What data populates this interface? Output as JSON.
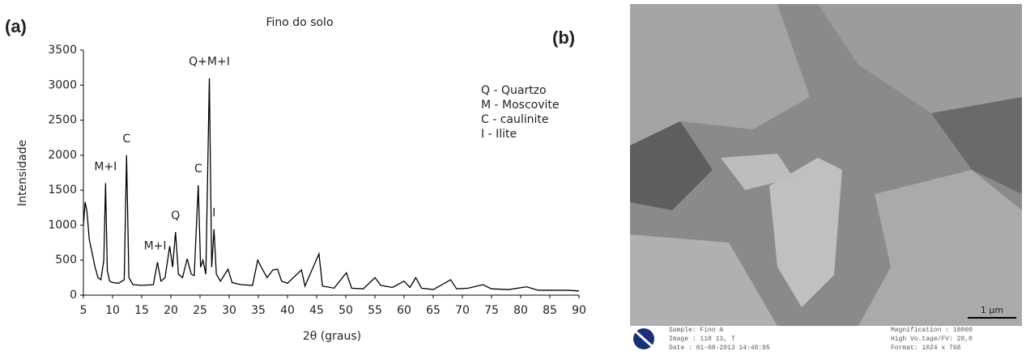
{
  "chart_data": {
    "type": "line",
    "title": "Fino do solo",
    "x_label": "2θ (graus)",
    "y_label": "Intensidade",
    "x": [
      5,
      5.3,
      5.6,
      6,
      6.5,
      7,
      7.5,
      8,
      8.5,
      8.8,
      9.1,
      9.5,
      10,
      11,
      12,
      12.4,
      12.8,
      13.5,
      15,
      17,
      17.7,
      18.3,
      19,
      19.8,
      20.3,
      20.8,
      21.3,
      22,
      22.8,
      23.5,
      24,
      24.7,
      25.1,
      25.5,
      26.0,
      26.6,
      27.0,
      27.4,
      27.8,
      28.5,
      29.8,
      30.5,
      32,
      34,
      34.9,
      35.5,
      36.5,
      37.5,
      38.3,
      39,
      40,
      42.4,
      43,
      45.4,
      46,
      48,
      50.1,
      51,
      53,
      55,
      56,
      58,
      60,
      61,
      62,
      63,
      65,
      68,
      69,
      71,
      73.5,
      75,
      78,
      81,
      83,
      86,
      88,
      90
    ],
    "series": [
      {
        "color": "#000000",
        "values": [
          1000,
          1330,
          1200,
          800,
          600,
          400,
          250,
          220,
          500,
          1600,
          350,
          200,
          180,
          170,
          220,
          2000,
          250,
          150,
          140,
          150,
          470,
          200,
          250,
          700,
          400,
          900,
          300,
          250,
          520,
          300,
          280,
          1570,
          400,
          500,
          300,
          3100,
          400,
          940,
          300,
          200,
          370,
          180,
          150,
          140,
          500,
          400,
          250,
          360,
          370,
          200,
          170,
          360,
          130,
          590,
          130,
          100,
          320,
          100,
          90,
          250,
          140,
          110,
          200,
          110,
          250,
          100,
          80,
          220,
          90,
          100,
          150,
          90,
          80,
          120,
          70,
          70,
          70,
          60
        ]
      }
    ],
    "xlim": [
      5,
      90
    ],
    "xticks": [
      5,
      10,
      15,
      20,
      25,
      30,
      35,
      40,
      45,
      50,
      55,
      60,
      65,
      70,
      75,
      80,
      85,
      90
    ],
    "ylim": [
      0,
      3500
    ],
    "yticks": [
      0,
      500,
      1000,
      1500,
      2000,
      2500,
      3000,
      3500
    ],
    "annotations": [
      {
        "text": "Q+M+I",
        "x": 26.6,
        "y": 3330
      },
      {
        "text": "C",
        "x": 12.4,
        "y": 2230
      },
      {
        "text": "M+I",
        "x": 8.8,
        "y": 1830
      },
      {
        "text": "C",
        "x": 24.7,
        "y": 1800
      },
      {
        "text": "Q",
        "x": 20.8,
        "y": 1130
      },
      {
        "text": "M+I",
        "x": 17.3,
        "y": 700
      },
      {
        "text": "I",
        "x": 27.4,
        "y": 1170
      }
    ],
    "notes": [
      "Q - Quartzo",
      "M - Moscovite",
      "C - caulinite",
      "I - Ilite"
    ]
  },
  "panel_labels": [
    "(a)",
    "(b)"
  ],
  "sem": {
    "scale_bar": "1 µm",
    "footer_left": [
      "Sample: Fino A",
      "Image : 118 13, T",
      "Date  : 01-08-2013 14:48:05"
    ],
    "footer_right": [
      "Magnification  : 18000",
      "High Vo.tage/FV: 20,0",
      "Format: 1024 x 768"
    ]
  }
}
